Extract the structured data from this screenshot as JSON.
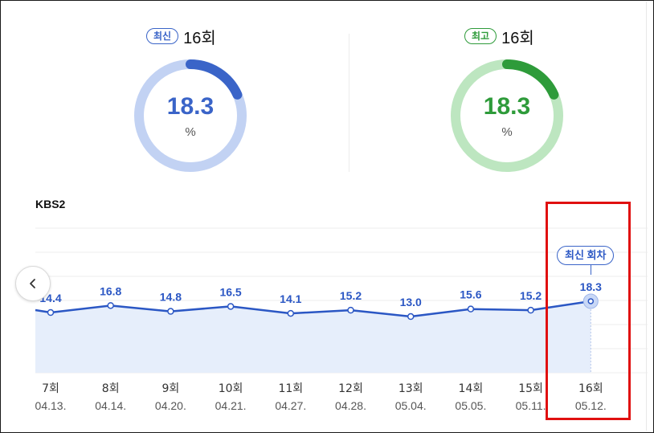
{
  "gauges": [
    {
      "badge": "최신",
      "episode": "16회",
      "value": "18.3",
      "unit": "%",
      "color": "#3a64c8",
      "track_color": "#c2d2f3",
      "fraction": 0.183
    },
    {
      "badge": "최고",
      "episode": "16회",
      "value": "18.3",
      "unit": "%",
      "color": "#2e9b3a",
      "track_color": "#bde6c0",
      "fraction": 0.183
    }
  ],
  "network_label": "KBS2",
  "latest_tag": "최신 회차",
  "chart_data": {
    "type": "line",
    "title": "",
    "xlabel": "",
    "ylabel": "",
    "categories": [
      "7회",
      "8회",
      "9회",
      "10회",
      "11회",
      "12회",
      "13회",
      "14회",
      "15회",
      "16회"
    ],
    "dates": [
      "04.13.",
      "04.14.",
      "04.20.",
      "04.21.",
      "04.27.",
      "04.28.",
      "05.04.",
      "05.05.",
      "05.11.",
      "05.12."
    ],
    "series": [
      {
        "values": [
          14.4,
          16.8,
          14.8,
          16.5,
          14.1,
          15.2,
          13.0,
          15.6,
          15.2,
          18.3
        ]
      }
    ],
    "highlight_index": 9,
    "line_color": "#2b57c4",
    "fill_color": "#e6eefb"
  }
}
